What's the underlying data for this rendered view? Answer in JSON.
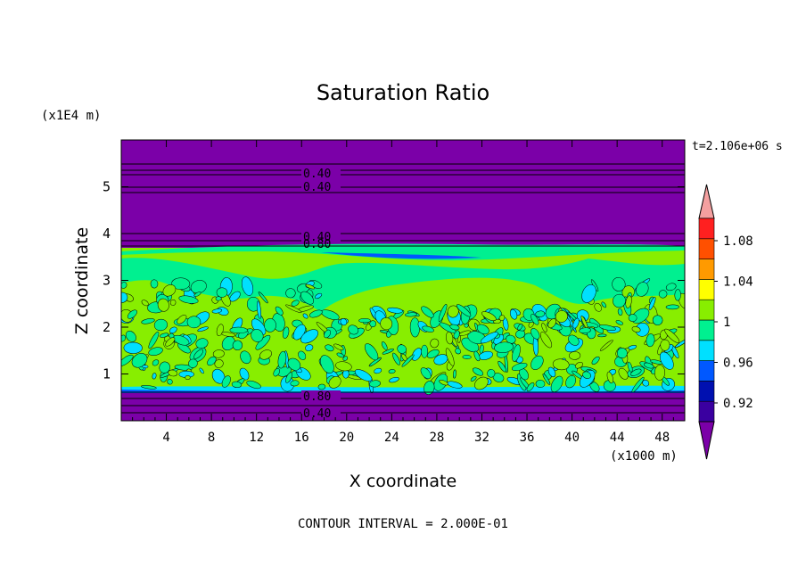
{
  "chart_data": {
    "type": "heatmap",
    "title": "Saturation Ratio",
    "xlabel": "X coordinate",
    "ylabel": "Z coordinate",
    "x_unit": "(x1000 m)",
    "y_unit": "(x1E4 m)",
    "time_label": "t=2.106e+06 s",
    "footer": "CONTOUR INTERVAL = 2.000E-01",
    "xlim": [
      0,
      50
    ],
    "ylim": [
      0,
      6
    ],
    "x_ticks": [
      "4",
      "8",
      "12",
      "16",
      "20",
      "24",
      "28",
      "32",
      "36",
      "40",
      "44",
      "48"
    ],
    "y_ticks": [
      "1",
      "2",
      "3",
      "4",
      "5"
    ],
    "contour_labels": [
      "0.40",
      "0.40",
      "0.40",
      "0.80",
      "0.80",
      "0.40"
    ],
    "colorbar": {
      "labels": [
        "1.08",
        "1.04",
        "1",
        "0.96",
        "0.92"
      ],
      "levels": [
        0.92,
        0.94,
        0.96,
        0.98,
        1.0,
        1.02,
        1.04,
        1.06,
        1.08,
        1.1
      ],
      "colors": [
        "#7b00a8",
        "#3a00a0",
        "#0010b0",
        "#0058ff",
        "#00e0ff",
        "#00f090",
        "#88ee00",
        "#ffff00",
        "#ff9a00",
        "#ff5000",
        "#ff2020",
        "#f4a0a0"
      ]
    },
    "regions": [
      {
        "z_range": [
          3.7,
          6.0
        ],
        "value": "< 0.92"
      },
      {
        "z_range": [
          0.6,
          3.7
        ],
        "value": "0.98 - 1.02"
      },
      {
        "z_range": [
          0.0,
          0.6
        ],
        "value": "< 0.92"
      }
    ]
  }
}
